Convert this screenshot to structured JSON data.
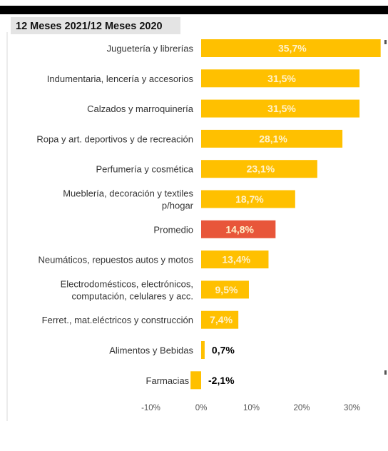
{
  "chart_data": {
    "type": "bar",
    "orientation": "horizontal",
    "title": "12 Meses 2021/12 Meses 2020",
    "categories": [
      [
        "Juguetería y librerías"
      ],
      [
        "Indumentaria, lencería y accesorios"
      ],
      [
        "Calzados y marroquinería"
      ],
      [
        "Ropa y art. deportivos y de recreación"
      ],
      [
        "Perfumería y cosmética"
      ],
      [
        "Mueblería, decoración y textiles",
        "p/hogar"
      ],
      [
        "Promedio"
      ],
      [
        "Neumáticos, repuestos autos y motos"
      ],
      [
        "Electrodomésticos, electrónicos,",
        "computación, celulares y acc."
      ],
      [
        "Ferret., mat.eléctricos y construcción"
      ],
      [
        "Alimentos y Bebidas"
      ],
      [
        "Farmacias"
      ]
    ],
    "values": [
      35.7,
      31.5,
      31.5,
      28.1,
      23.1,
      18.7,
      14.8,
      13.4,
      9.5,
      7.4,
      0.7,
      -2.1
    ],
    "value_labels": [
      "35,7%",
      "31,5%",
      "31,5%",
      "28,1%",
      "23,1%",
      "18,7%",
      "14,8%",
      "13,4%",
      "9,5%",
      "7,4%",
      "0,7%",
      "-2,1%"
    ],
    "highlight_category": "Promedio",
    "xlim": [
      -10,
      36
    ],
    "xticks": [
      -10,
      0,
      10,
      20,
      30
    ],
    "xtick_labels": [
      "-10%",
      "0%",
      "10%",
      "20%",
      "30%"
    ],
    "colors": {
      "bar": "#FFC000",
      "highlight": "#E8563A",
      "label_inside": "#FFF2CC",
      "label_outside": "#000000",
      "title_bg": "#E4E4E4"
    },
    "grid": false,
    "legend": "none"
  }
}
